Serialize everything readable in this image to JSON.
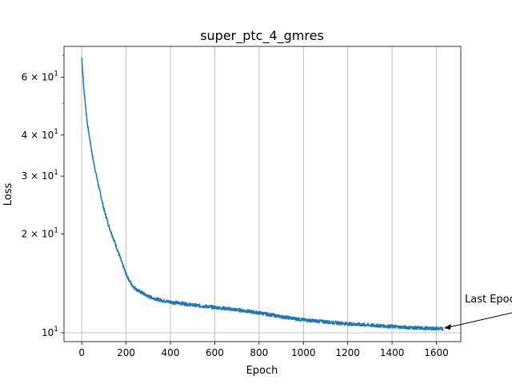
{
  "chart_data": {
    "type": "line",
    "title": "super_ptc_4_gmres",
    "xlabel": "Epoch",
    "ylabel": "Loss",
    "yscale": "log",
    "xlim": [
      -80,
      1710
    ],
    "ylim": [
      9.4,
      74.5
    ],
    "grid": "vertical-major",
    "color": "#1f77b4",
    "x_ticks": [
      0,
      200,
      400,
      600,
      800,
      1000,
      1200,
      1400,
      1600
    ],
    "y_ticks": [
      {
        "value": 10,
        "label": "10",
        "exp": "1",
        "mant": ""
      },
      {
        "value": 20,
        "label": "10",
        "exp": "1",
        "mant": "2×"
      },
      {
        "value": 30,
        "label": "10",
        "exp": "1",
        "mant": "3×"
      },
      {
        "value": 40,
        "label": "10",
        "exp": "1",
        "mant": "4×"
      },
      {
        "value": 60,
        "label": "10",
        "exp": "1",
        "mant": "6×"
      }
    ],
    "series": [
      {
        "x": [
          0,
          10,
          25,
          50,
          75,
          100,
          125,
          150,
          175,
          200,
          225,
          250,
          275,
          300,
          350,
          400,
          450,
          500,
          600,
          700,
          800,
          900,
          1000,
          1100,
          1200,
          1300,
          1400,
          1500,
          1600,
          1630
        ],
        "y": [
          69,
          55,
          43.5,
          34,
          28.2,
          23.8,
          20.9,
          18.8,
          16.8,
          15.1,
          14.0,
          13.5,
          13.2,
          12.9,
          12.6,
          12.4,
          12.3,
          12.15,
          11.95,
          11.75,
          11.5,
          11.2,
          10.95,
          10.8,
          10.65,
          10.55,
          10.45,
          10.35,
          10.3,
          10.28
        ],
        "noise": 0.012
      }
    ],
    "annotation": {
      "text": "Last Epoch",
      "x": 1630,
      "y": 10.28
    }
  }
}
